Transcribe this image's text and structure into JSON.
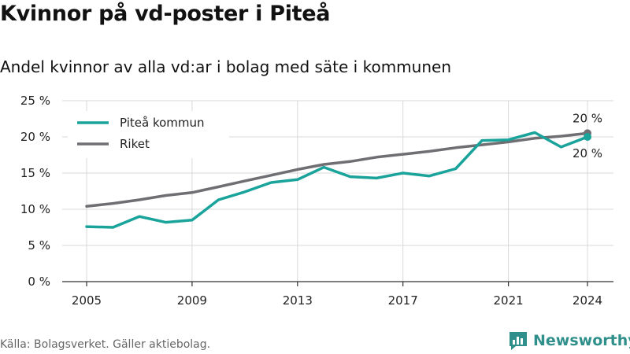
{
  "header": {
    "title": "Kvinnor på vd-poster i Piteå",
    "subtitle": "Andel kvinnor av alla vd:ar i bolag med säte i kommunen"
  },
  "footer": {
    "source": "Källa: Bolagsverket. Gäller aktiebolag.",
    "brand": "Newsworthy"
  },
  "colors": {
    "pitea": "#1aa39b",
    "riket": "#6e6e73",
    "grid": "#d9d9d9",
    "brand": "#2f8f8a"
  },
  "chart_data": {
    "type": "line",
    "x": [
      2005,
      2006,
      2007,
      2008,
      2009,
      2010,
      2011,
      2012,
      2013,
      2014,
      2015,
      2016,
      2017,
      2018,
      2019,
      2020,
      2021,
      2022,
      2023,
      2024
    ],
    "series": [
      {
        "name": "Piteå kommun",
        "color": "#1aa39b",
        "values": [
          7.6,
          7.5,
          9.0,
          8.2,
          8.5,
          11.3,
          12.4,
          13.7,
          14.1,
          15.8,
          14.5,
          14.3,
          15.0,
          14.6,
          15.6,
          19.5,
          19.6,
          20.6,
          18.6,
          20.0
        ],
        "end_label": "20 %"
      },
      {
        "name": "Riket",
        "color": "#6e6e73",
        "values": [
          10.4,
          10.8,
          11.3,
          11.9,
          12.3,
          13.1,
          13.9,
          14.7,
          15.5,
          16.2,
          16.6,
          17.2,
          17.6,
          18.0,
          18.5,
          18.9,
          19.3,
          19.8,
          20.1,
          20.5
        ],
        "end_label": "20 %"
      }
    ],
    "x_ticks": [
      "2005",
      "2009",
      "2013",
      "2017",
      "2021",
      "2024"
    ],
    "x_tick_values": [
      2005,
      2009,
      2013,
      2017,
      2021,
      2024
    ],
    "y_ticks": [
      "0 %",
      "5 %",
      "10 %",
      "15 %",
      "20 %",
      "25 %"
    ],
    "y_tick_values": [
      0,
      5,
      10,
      15,
      20,
      25
    ],
    "ylim": [
      0,
      25
    ],
    "xlim": [
      2005,
      2024
    ],
    "grid": true,
    "legend": "top-left"
  }
}
